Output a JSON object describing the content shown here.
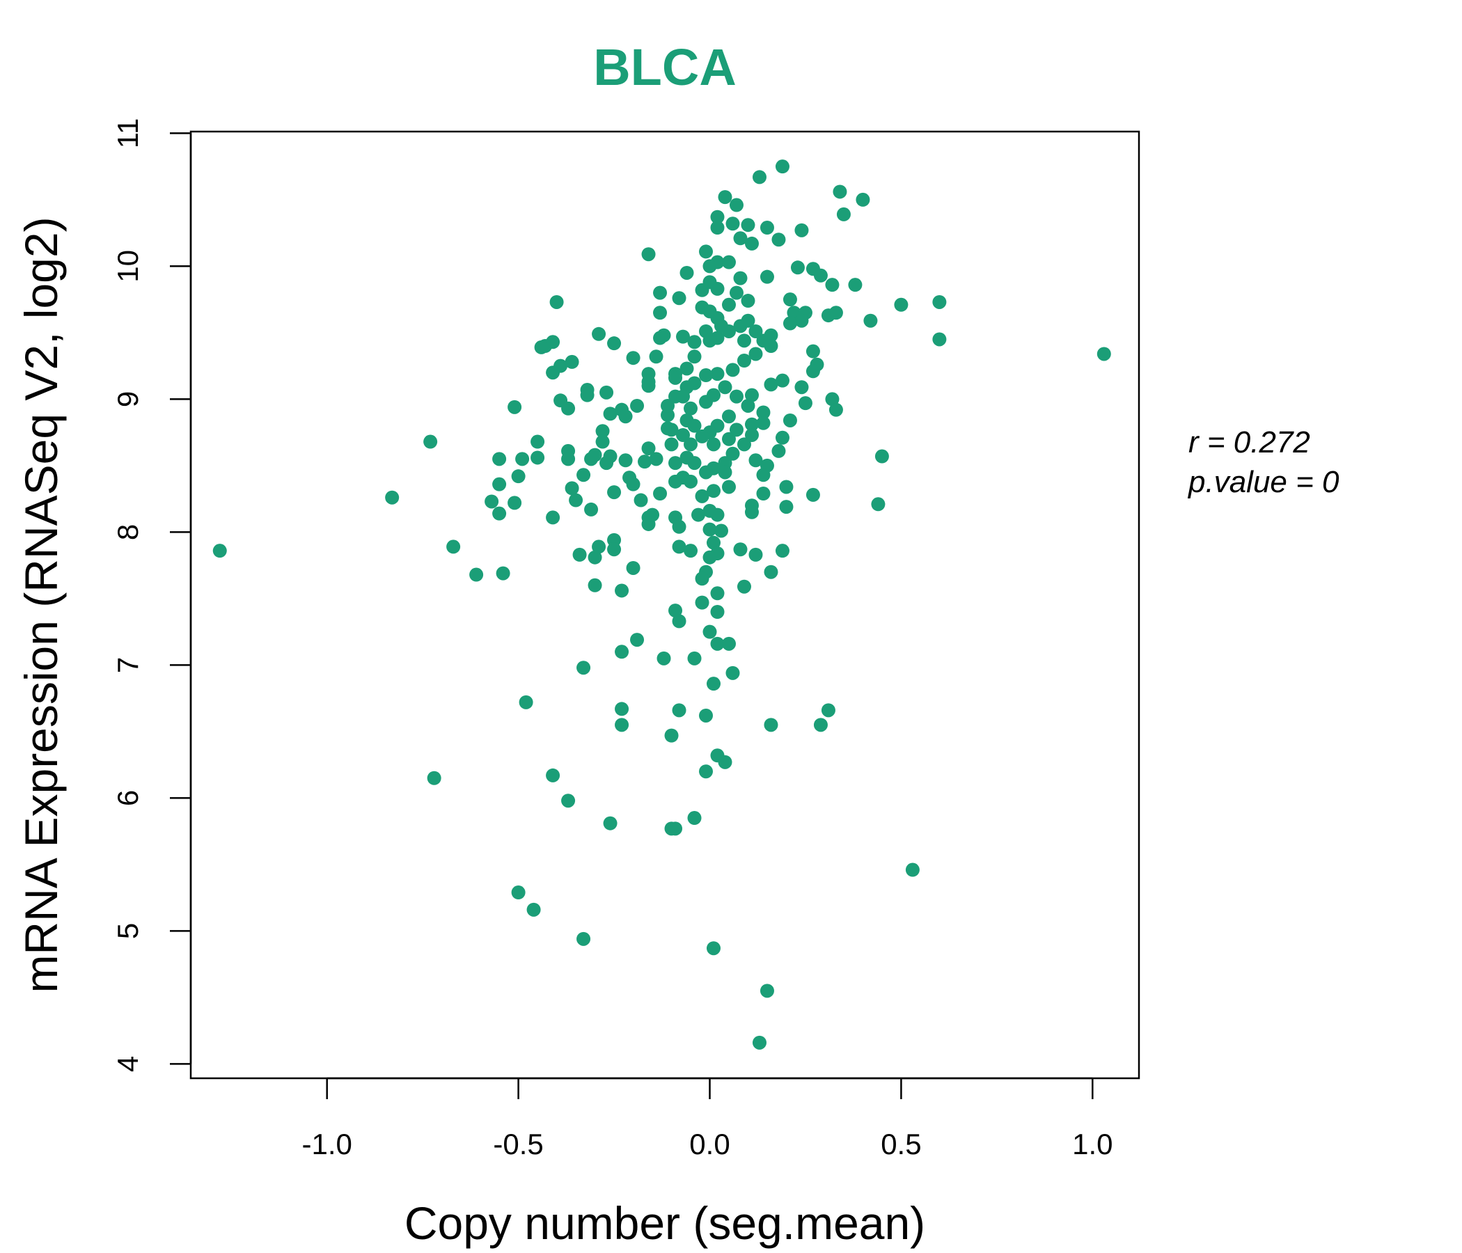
{
  "chart_data": {
    "type": "scatter",
    "title": "BLCA",
    "xlabel": "Copy number (seg.mean)",
    "ylabel": "mRNA Expression (RNASeq V2, log2)",
    "xlim": [
      -1.36,
      1.12
    ],
    "ylim": [
      3.89,
      11.01
    ],
    "xticks": [
      -1.0,
      -0.5,
      0.0,
      0.5,
      1.0
    ],
    "xtick_labels": [
      "-1.0",
      "-0.5",
      "0.0",
      "0.5",
      "1.0"
    ],
    "yticks": [
      4,
      5,
      6,
      7,
      8,
      9,
      10,
      11
    ],
    "ytick_labels": [
      "4",
      "5",
      "6",
      "7",
      "8",
      "9",
      "10",
      "11"
    ],
    "grid": false,
    "point_color": "#1B9E77",
    "title_color": "#1B9E77",
    "annotations": {
      "r": "r = 0.272",
      "p": "p.value = 0"
    },
    "points": [
      [
        -1.28,
        7.86
      ],
      [
        -0.83,
        8.26
      ],
      [
        -0.73,
        8.68
      ],
      [
        -0.72,
        6.15
      ],
      [
        -0.67,
        7.89
      ],
      [
        -0.61,
        7.68
      ],
      [
        -0.54,
        7.69
      ],
      [
        -0.57,
        8.23
      ],
      [
        -0.55,
        8.14
      ],
      [
        -0.55,
        8.36
      ],
      [
        -0.55,
        8.55
      ],
      [
        -0.51,
        8.94
      ],
      [
        -0.51,
        8.22
      ],
      [
        -0.5,
        8.42
      ],
      [
        -0.49,
        8.55
      ],
      [
        -0.48,
        6.72
      ],
      [
        -0.5,
        5.29
      ],
      [
        -0.46,
        5.16
      ],
      [
        -0.45,
        8.56
      ],
      [
        -0.45,
        8.68
      ],
      [
        -0.44,
        9.39
      ],
      [
        -0.43,
        9.4
      ],
      [
        -0.41,
        9.43
      ],
      [
        -0.4,
        9.73
      ],
      [
        -0.41,
        9.2
      ],
      [
        -0.39,
        9.25
      ],
      [
        -0.39,
        8.99
      ],
      [
        -0.37,
        8.93
      ],
      [
        -0.41,
        8.11
      ],
      [
        -0.41,
        6.17
      ],
      [
        -0.37,
        5.98
      ],
      [
        -0.37,
        8.61
      ],
      [
        -0.37,
        8.55
      ],
      [
        -0.36,
        9.28
      ],
      [
        -0.36,
        8.33
      ],
      [
        -0.35,
        8.24
      ],
      [
        -0.34,
        7.83
      ],
      [
        -0.33,
        4.94
      ],
      [
        -0.33,
        6.98
      ],
      [
        -0.33,
        8.43
      ],
      [
        -0.32,
        9.07
      ],
      [
        -0.32,
        9.03
      ],
      [
        -0.31,
        8.17
      ],
      [
        -0.3,
        7.6
      ],
      [
        -0.3,
        7.81
      ],
      [
        -0.29,
        7.89
      ],
      [
        -0.29,
        9.49
      ],
      [
        -0.31,
        8.55
      ],
      [
        -0.3,
        8.58
      ],
      [
        -0.28,
        8.76
      ],
      [
        -0.28,
        8.68
      ],
      [
        -0.27,
        9.05
      ],
      [
        -0.27,
        8.52
      ],
      [
        -0.26,
        8.57
      ],
      [
        -0.26,
        5.81
      ],
      [
        -0.25,
        9.42
      ],
      [
        -0.26,
        8.89
      ],
      [
        -0.25,
        7.94
      ],
      [
        -0.25,
        7.87
      ],
      [
        -0.25,
        8.3
      ],
      [
        -0.23,
        6.67
      ],
      [
        -0.23,
        6.55
      ],
      [
        -0.23,
        7.1
      ],
      [
        -0.23,
        7.56
      ],
      [
        -0.23,
        8.92
      ],
      [
        -0.22,
        8.87
      ],
      [
        -0.22,
        8.54
      ],
      [
        -0.21,
        8.41
      ],
      [
        -0.2,
        8.36
      ],
      [
        -0.2,
        7.73
      ],
      [
        -0.2,
        9.31
      ],
      [
        -0.19,
        7.19
      ],
      [
        -0.19,
        8.95
      ],
      [
        -0.18,
        8.24
      ],
      [
        -0.17,
        8.53
      ],
      [
        -0.16,
        9.19
      ],
      [
        -0.16,
        9.13
      ],
      [
        -0.16,
        9.1
      ],
      [
        -0.16,
        8.11
      ],
      [
        -0.16,
        8.06
      ],
      [
        -0.15,
        8.13
      ],
      [
        -0.16,
        8.63
      ],
      [
        -0.14,
        8.55
      ],
      [
        -0.16,
        10.09
      ],
      [
        -0.14,
        9.32
      ],
      [
        -0.13,
        9.46
      ],
      [
        -0.13,
        8.29
      ],
      [
        -0.13,
        9.8
      ],
      [
        -0.13,
        9.65
      ],
      [
        -0.12,
        9.48
      ],
      [
        -0.12,
        7.05
      ],
      [
        -0.11,
        8.88
      ],
      [
        -0.11,
        8.78
      ],
      [
        -0.1,
        6.47
      ],
      [
        -0.1,
        5.77
      ],
      [
        -0.09,
        5.77
      ],
      [
        -0.09,
        7.41
      ],
      [
        -0.09,
        8.11
      ],
      [
        -0.08,
        8.04
      ],
      [
        -0.08,
        7.33
      ],
      [
        -0.08,
        6.66
      ],
      [
        -0.08,
        7.89
      ],
      [
        -0.08,
        9.76
      ],
      [
        -0.07,
        9.47
      ],
      [
        -0.06,
        9.95
      ],
      [
        -0.04,
        7.05
      ],
      [
        -0.04,
        5.85
      ],
      [
        -0.05,
        7.86
      ],
      [
        -0.02,
        7.47
      ],
      [
        -0.01,
        6.62
      ],
      [
        -0.01,
        6.2
      ],
      [
        0.0,
        7.25
      ],
      [
        0.01,
        6.86
      ],
      [
        0.01,
        4.87
      ],
      [
        0.02,
        6.32
      ],
      [
        0.04,
        6.27
      ],
      [
        0.02,
        7.16
      ],
      [
        0.05,
        7.16
      ],
      [
        0.06,
        6.94
      ],
      [
        0.02,
        7.54
      ],
      [
        0.02,
        7.4
      ],
      [
        -0.01,
        10.11
      ],
      [
        0.02,
        10.37
      ],
      [
        0.02,
        10.29
      ],
      [
        0.04,
        10.52
      ],
      [
        0.07,
        10.46
      ],
      [
        0.06,
        10.32
      ],
      [
        0.08,
        10.21
      ],
      [
        0.1,
        10.31
      ],
      [
        0.11,
        10.17
      ],
      [
        0.15,
        10.29
      ],
      [
        0.13,
        10.67
      ],
      [
        0.19,
        10.75
      ],
      [
        0.18,
        10.2
      ],
      [
        0.24,
        10.27
      ],
      [
        0.34,
        10.56
      ],
      [
        0.4,
        10.5
      ],
      [
        0.35,
        10.39
      ],
      [
        0.02,
        10.03
      ],
      [
        0.05,
        10.03
      ],
      [
        0.0,
        10.0
      ],
      [
        0.08,
        9.91
      ],
      [
        0.15,
        9.92
      ],
      [
        0.23,
        9.99
      ],
      [
        0.27,
        9.98
      ],
      [
        0.29,
        9.93
      ],
      [
        0.32,
        9.86
      ],
      [
        0.38,
        9.86
      ],
      [
        0.5,
        9.71
      ],
      [
        0.6,
        9.73
      ],
      [
        0.42,
        9.59
      ],
      [
        0.6,
        9.45
      ],
      [
        1.03,
        9.34
      ],
      [
        0.21,
        9.75
      ],
      [
        0.22,
        9.65
      ],
      [
        0.25,
        9.65
      ],
      [
        0.24,
        9.59
      ],
      [
        0.21,
        9.57
      ],
      [
        0.31,
        9.63
      ],
      [
        0.33,
        9.65
      ],
      [
        0.27,
        9.36
      ],
      [
        0.28,
        9.26
      ],
      [
        0.27,
        9.21
      ],
      [
        0.24,
        9.09
      ],
      [
        0.25,
        8.97
      ],
      [
        0.32,
        9.0
      ],
      [
        0.33,
        8.92
      ],
      [
        0.21,
        8.84
      ],
      [
        0.19,
        8.71
      ],
      [
        0.18,
        8.61
      ],
      [
        0.45,
        8.57
      ],
      [
        0.44,
        8.21
      ],
      [
        0.2,
        8.34
      ],
      [
        0.27,
        8.28
      ],
      [
        0.2,
        8.19
      ],
      [
        0.19,
        7.86
      ],
      [
        0.14,
        8.29
      ],
      [
        0.11,
        8.2
      ],
      [
        0.11,
        8.15
      ],
      [
        0.12,
        7.83
      ],
      [
        0.08,
        7.87
      ],
      [
        0.09,
        7.59
      ],
      [
        0.16,
        7.7
      ],
      [
        0.16,
        6.55
      ],
      [
        0.29,
        6.55
      ],
      [
        0.31,
        6.66
      ],
      [
        0.53,
        5.46
      ],
      [
        0.15,
        4.55
      ],
      [
        0.13,
        4.16
      ],
      [
        0.19,
        9.14
      ],
      [
        0.16,
        9.11
      ],
      [
        0.16,
        9.48
      ],
      [
        0.14,
        9.44
      ],
      [
        0.16,
        9.4
      ],
      [
        0.11,
        9.03
      ],
      [
        0.14,
        8.9
      ],
      [
        0.14,
        8.82
      ],
      [
        0.15,
        8.5
      ],
      [
        0.12,
        8.54
      ],
      [
        0.14,
        8.43
      ],
      [
        0.11,
        8.81
      ],
      [
        0.11,
        8.73
      ],
      [
        -0.02,
        9.82
      ],
      [
        0.0,
        9.88
      ],
      [
        0.02,
        9.83
      ],
      [
        -0.02,
        9.69
      ],
      [
        0.0,
        9.66
      ],
      [
        0.02,
        9.61
      ],
      [
        0.05,
        9.71
      ],
      [
        0.07,
        9.8
      ],
      [
        0.1,
        9.74
      ],
      [
        -0.04,
        9.43
      ],
      [
        -0.01,
        9.51
      ],
      [
        0.02,
        9.46
      ],
      [
        0.05,
        9.51
      ],
      [
        0.08,
        9.55
      ],
      [
        0.1,
        9.59
      ],
      [
        0.12,
        9.34
      ],
      [
        0.09,
        9.29
      ],
      [
        0.06,
        9.22
      ],
      [
        0.02,
        9.19
      ],
      [
        -0.01,
        9.18
      ],
      [
        -0.04,
        9.12
      ],
      [
        -0.06,
        9.09
      ],
      [
        -0.09,
        9.02
      ],
      [
        -0.11,
        8.95
      ],
      [
        -0.09,
        9.19
      ],
      [
        -0.06,
        9.23
      ],
      [
        -0.04,
        9.32
      ],
      [
        -0.07,
        9.02
      ],
      [
        -0.05,
        8.93
      ],
      [
        -0.01,
        8.98
      ],
      [
        0.01,
        9.03
      ],
      [
        0.04,
        9.09
      ],
      [
        0.07,
        9.02
      ],
      [
        0.1,
        8.95
      ],
      [
        0.05,
        8.87
      ],
      [
        0.02,
        8.8
      ],
      [
        0.0,
        8.75
      ],
      [
        -0.02,
        8.72
      ],
      [
        -0.05,
        8.66
      ],
      [
        -0.07,
        8.73
      ],
      [
        -0.1,
        8.66
      ],
      [
        -0.06,
        8.84
      ],
      [
        -0.04,
        8.8
      ],
      [
        0.01,
        8.66
      ],
      [
        0.05,
        8.7
      ],
      [
        0.07,
        8.77
      ],
      [
        0.09,
        8.66
      ],
      [
        0.06,
        8.59
      ],
      [
        0.04,
        8.52
      ],
      [
        0.01,
        8.48
      ],
      [
        -0.01,
        8.45
      ],
      [
        -0.04,
        8.52
      ],
      [
        -0.06,
        8.56
      ],
      [
        -0.09,
        8.52
      ],
      [
        -0.07,
        8.41
      ],
      [
        -0.05,
        8.38
      ],
      [
        -0.02,
        8.27
      ],
      [
        0.01,
        8.31
      ],
      [
        0.04,
        8.45
      ],
      [
        0.05,
        8.34
      ],
      [
        0.02,
        8.13
      ],
      [
        0.0,
        8.16
      ],
      [
        -0.03,
        8.13
      ],
      [
        0.0,
        8.02
      ],
      [
        0.01,
        7.92
      ],
      [
        0.02,
        7.84
      ],
      [
        0.0,
        7.81
      ],
      [
        -0.01,
        7.7
      ],
      [
        -0.02,
        7.65
      ],
      [
        0.03,
        8.01
      ],
      [
        -0.09,
        8.38
      ],
      [
        -0.1,
        8.77
      ],
      [
        -0.09,
        9.16
      ],
      [
        0.03,
        9.55
      ],
      [
        0.0,
        9.44
      ],
      [
        0.12,
        9.51
      ],
      [
        0.09,
        9.44
      ]
    ]
  }
}
